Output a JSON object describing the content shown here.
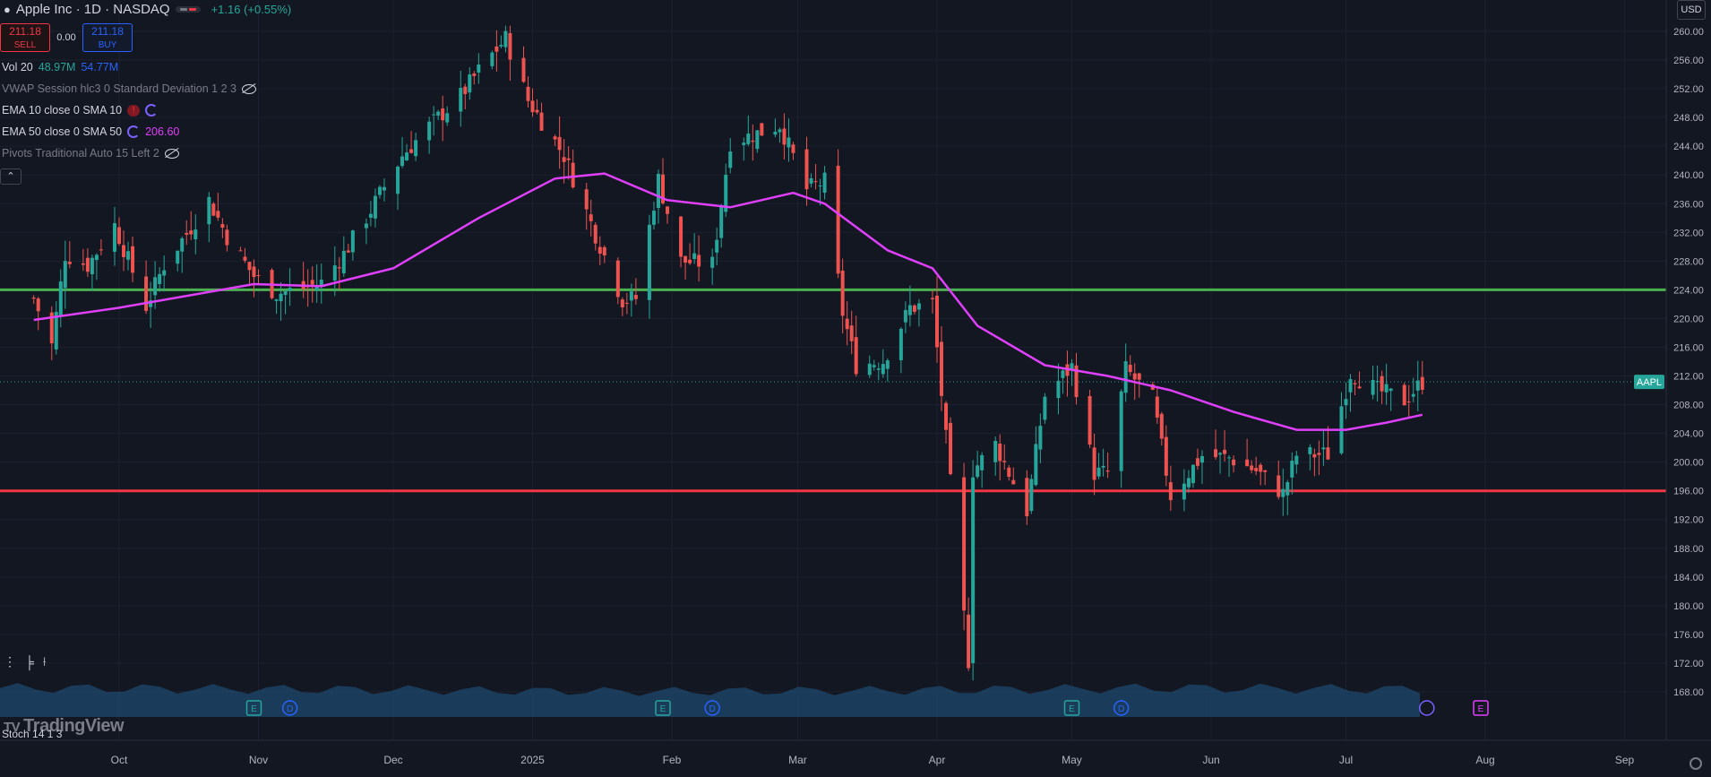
{
  "header": {
    "title": "Apple Inc · 1D · NASDAQ",
    "change": "+1.16 (+0.55%)",
    "currency": "USD"
  },
  "trade": {
    "sell_price": "211.18",
    "sell_label": "SELL",
    "spread": "0.00",
    "buy_price": "211.18",
    "buy_label": "BUY"
  },
  "indicators": {
    "vol": {
      "label": "Vol 20",
      "v1": "48.97M",
      "v2": "54.77M"
    },
    "vwap": {
      "label": "VWAP Session hlc3 0 Standard Deviation 1 2 3"
    },
    "ema10": {
      "label": "EMA 10 close 0 SMA 10"
    },
    "ema50": {
      "label": "EMA 50 close 0 SMA 50",
      "value": "206.60"
    },
    "pivots": {
      "label": "Pivots Traditional Auto 15 Left 2"
    }
  },
  "lower_pane": {
    "stoch_label": "Stoch 14 1 3"
  },
  "brand": {
    "logo_text": "TradingView"
  },
  "colors": {
    "background": "#131722",
    "up": "#26a69a",
    "down": "#ef5350",
    "ema50": "#e040fb",
    "resistance": "#4caf50",
    "support": "#f23645",
    "volume_area": "#1e4a6e"
  },
  "chart_data": {
    "type": "candlestick",
    "symbol": "AAPL",
    "last_price": "211.18",
    "y_ticks": [
      "260.00",
      "256.00",
      "252.00",
      "248.00",
      "244.00",
      "240.00",
      "236.00",
      "232.00",
      "228.00",
      "224.00",
      "220.00",
      "216.00",
      "212.00",
      "208.00",
      "204.00",
      "200.00",
      "196.00",
      "192.00",
      "188.00",
      "184.00",
      "180.00",
      "176.00",
      "172.00",
      "168.00"
    ],
    "ylim": [
      166,
      262
    ],
    "x_ticks": [
      {
        "label": "Oct",
        "date": "2024-10-01"
      },
      {
        "label": "Nov",
        "date": "2024-11-01"
      },
      {
        "label": "Dec",
        "date": "2024-12-01"
      },
      {
        "label": "2025",
        "date": "2025-01-01"
      },
      {
        "label": "Feb",
        "date": "2025-02-01"
      },
      {
        "label": "Mar",
        "date": "2025-03-01"
      },
      {
        "label": "Apr",
        "date": "2025-04-01"
      },
      {
        "label": "May",
        "date": "2025-05-01"
      },
      {
        "label": "Jun",
        "date": "2025-06-01"
      },
      {
        "label": "Jul",
        "date": "2025-07-01"
      },
      {
        "label": "Aug",
        "date": "2025-08-01"
      },
      {
        "label": "Sep",
        "date": "2025-09-01"
      }
    ],
    "horizontal_lines": [
      {
        "price": 224.0,
        "label": "224.00",
        "color": "#4caf50"
      },
      {
        "price": 196.0,
        "label": "196.00",
        "color": "#f23645"
      }
    ],
    "close_path": [
      [
        "2024-09-12",
        222.8
      ],
      [
        "2024-09-16",
        216.3
      ],
      [
        "2024-09-19",
        228.9
      ],
      [
        "2024-09-24",
        227.4
      ],
      [
        "2024-09-30",
        233.0
      ],
      [
        "2024-10-07",
        221.7
      ],
      [
        "2024-10-11",
        227.5
      ],
      [
        "2024-10-16",
        231.8
      ],
      [
        "2024-10-21",
        236.5
      ],
      [
        "2024-10-25",
        231.4
      ],
      [
        "2024-10-31",
        225.9
      ],
      [
        "2024-11-05",
        223.5
      ],
      [
        "2024-11-11",
        224.2
      ],
      [
        "2024-11-15",
        225.0
      ],
      [
        "2024-11-20",
        229.0
      ],
      [
        "2024-11-26",
        235.1
      ],
      [
        "2024-12-03",
        242.7
      ],
      [
        "2024-12-09",
        246.8
      ],
      [
        "2024-12-16",
        251.0
      ],
      [
        "2024-12-20",
        254.5
      ],
      [
        "2024-12-26",
        259.0
      ],
      [
        "2024-12-31",
        250.4
      ],
      [
        "2025-01-08",
        242.7
      ],
      [
        "2025-01-14",
        233.3
      ],
      [
        "2025-01-21",
        222.6
      ],
      [
        "2025-01-24",
        222.8
      ],
      [
        "2025-01-29",
        239.4
      ],
      [
        "2025-02-03",
        228.0
      ],
      [
        "2025-02-10",
        227.6
      ],
      [
        "2025-02-14",
        244.6
      ],
      [
        "2025-02-20",
        245.8
      ],
      [
        "2025-02-25",
        247.0
      ],
      [
        "2025-03-03",
        238.0
      ],
      [
        "2025-03-07",
        239.1
      ],
      [
        "2025-03-11",
        220.8
      ],
      [
        "2025-03-14",
        213.5
      ],
      [
        "2025-03-20",
        214.1
      ],
      [
        "2025-03-26",
        221.5
      ],
      [
        "2025-03-31",
        222.1
      ],
      [
        "2025-04-03",
        203.2
      ],
      [
        "2025-04-08",
        172.4
      ],
      [
        "2025-04-09",
        198.9
      ],
      [
        "2025-04-14",
        202.5
      ],
      [
        "2025-04-21",
        193.2
      ],
      [
        "2025-04-25",
        209.3
      ],
      [
        "2025-05-01",
        213.3
      ],
      [
        "2025-05-06",
        198.5
      ],
      [
        "2025-05-09",
        198.5
      ],
      [
        "2025-05-13",
        212.9
      ],
      [
        "2025-05-19",
        208.8
      ],
      [
        "2025-05-23",
        195.3
      ],
      [
        "2025-05-30",
        200.9
      ],
      [
        "2025-06-05",
        200.6
      ],
      [
        "2025-06-11",
        198.8
      ],
      [
        "2025-06-17",
        195.6
      ],
      [
        "2025-06-20",
        201.0
      ],
      [
        "2025-06-27",
        201.1
      ],
      [
        "2025-07-02",
        212.4
      ],
      [
        "2025-07-08",
        210.0
      ],
      [
        "2025-07-14",
        208.6
      ],
      [
        "2025-07-18",
        211.18
      ]
    ],
    "ema50_path": [
      [
        "2024-09-12",
        219.8
      ],
      [
        "2024-10-01",
        221.5
      ],
      [
        "2024-10-31",
        224.8
      ],
      [
        "2024-11-15",
        224.5
      ],
      [
        "2024-12-01",
        227.0
      ],
      [
        "2024-12-20",
        234.0
      ],
      [
        "2025-01-06",
        239.5
      ],
      [
        "2025-01-17",
        240.2
      ],
      [
        "2025-01-31",
        236.5
      ],
      [
        "2025-02-14",
        235.5
      ],
      [
        "2025-02-28",
        237.5
      ],
      [
        "2025-03-07",
        236.0
      ],
      [
        "2025-03-21",
        229.5
      ],
      [
        "2025-03-31",
        227.0
      ],
      [
        "2025-04-10",
        219.0
      ],
      [
        "2025-04-25",
        213.5
      ],
      [
        "2025-05-09",
        212.0
      ],
      [
        "2025-05-23",
        210.0
      ],
      [
        "2025-06-06",
        207.0
      ],
      [
        "2025-06-20",
        204.5
      ],
      [
        "2025-07-01",
        204.5
      ],
      [
        "2025-07-10",
        205.5
      ],
      [
        "2025-07-18",
        206.6
      ]
    ],
    "volume_series": [
      [
        1,
        1.0
      ],
      [
        2,
        0.98
      ],
      [
        3,
        0.96
      ],
      [
        4,
        0.94
      ],
      [
        5,
        0.9
      ],
      [
        6,
        0.88
      ],
      [
        7,
        0.9
      ],
      [
        8,
        0.92
      ],
      [
        9,
        0.96
      ],
      [
        10,
        1.0
      ],
      [
        11,
        0.98
      ],
      [
        12,
        0.95
      ]
    ]
  }
}
